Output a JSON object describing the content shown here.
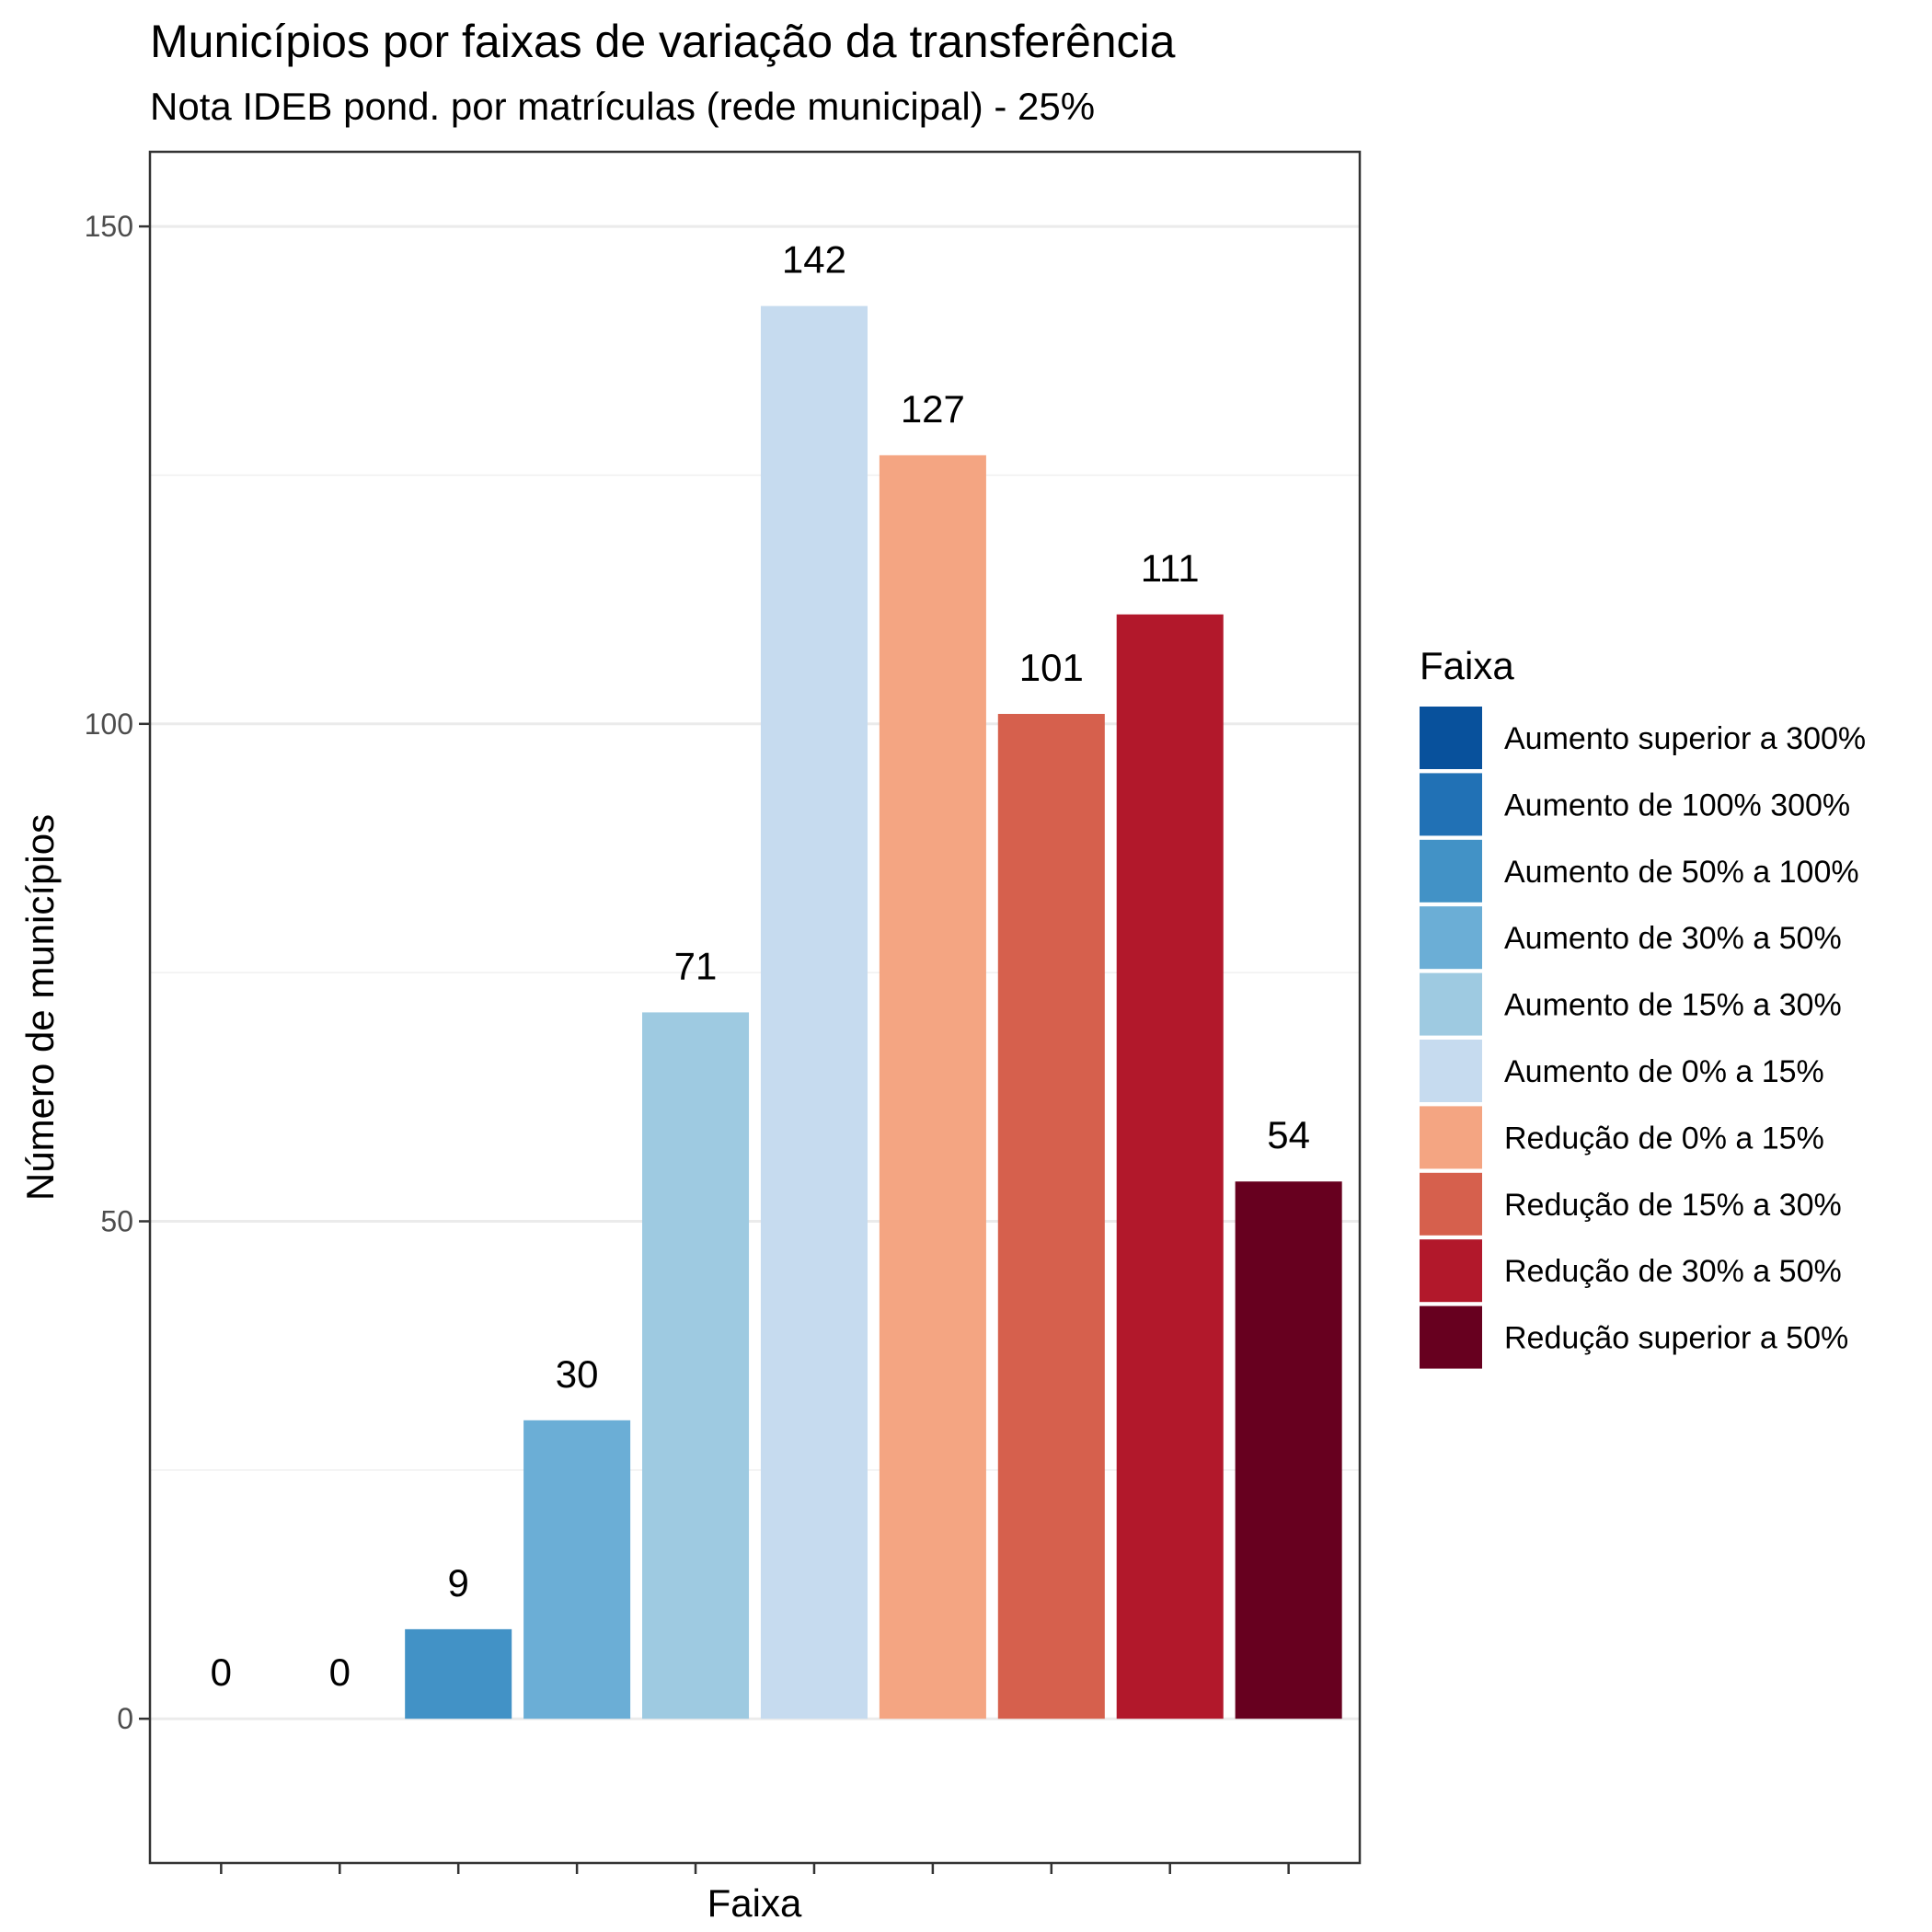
{
  "chart_data": {
    "type": "bar",
    "title": "Municípios por faixas de variação da transferência",
    "subtitle": "Nota IDEB pond. por matrículas (rede municipal) - 25%",
    "xlabel": "Faixa",
    "ylabel": "Número de municípios",
    "ylim": [
      -14.5,
      157.5
    ],
    "yticks": [
      0,
      50,
      100,
      150
    ],
    "grid": true,
    "legend_title": "Faixa",
    "legend_position": "right",
    "categories": [
      "Aumento superior a 300%",
      "Aumento de 100%  300%",
      "Aumento de 50% a 100%",
      "Aumento de 30% a 50%",
      "Aumento de 15% a 30%",
      "Aumento de 0% a 15%",
      "Redução de 0% a 15%",
      "Redução de 15% a 30%",
      "Redução de 30% a 50%",
      "Redução superior a 50%"
    ],
    "values": [
      0,
      0,
      9,
      30,
      71,
      142,
      127,
      101,
      111,
      54
    ],
    "colors": [
      "#08519C",
      "#2171B5",
      "#4292C6",
      "#6BAED6",
      "#9ECAE1",
      "#C6DBEF",
      "#F4A582",
      "#D6604D",
      "#B2182B",
      "#67001F"
    ]
  }
}
